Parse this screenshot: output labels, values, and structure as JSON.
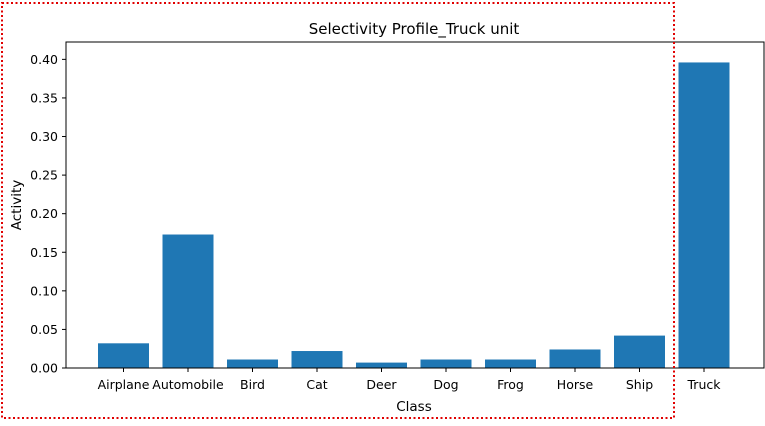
{
  "chart_data": {
    "type": "bar",
    "title": "Selectivity Profile_Truck unit",
    "xlabel": "Class",
    "ylabel": "Activity",
    "categories": [
      "Airplane",
      "Automobile",
      "Bird",
      "Cat",
      "Deer",
      "Dog",
      "Frog",
      "Horse",
      "Ship",
      "Truck"
    ],
    "values": [
      0.032,
      0.173,
      0.011,
      0.022,
      0.007,
      0.011,
      0.011,
      0.024,
      0.042,
      0.396
    ],
    "ylim": [
      0,
      0.4225
    ],
    "yticks": [
      "0.00",
      "0.05",
      "0.10",
      "0.15",
      "0.20",
      "0.25",
      "0.30",
      "0.35",
      "0.40"
    ],
    "bar_color": "#1f77b4",
    "grid": false,
    "annotation": {
      "type": "dotted-rectangle",
      "color": "#e00000",
      "encloses": [
        "Airplane",
        "Automobile",
        "Bird",
        "Cat",
        "Deer",
        "Dog",
        "Frog",
        "Horse",
        "Ship"
      ]
    }
  }
}
